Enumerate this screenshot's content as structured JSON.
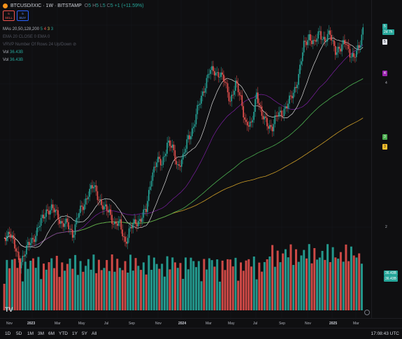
{
  "header": {
    "symbol": "BTCUSD/IXIC · 1W · BITSTAMP",
    "o_label": "O",
    "o_val": "5",
    "h_label": "H",
    "h_val": "5",
    "l_label": "L",
    "l_val": "5",
    "c_label": "C",
    "c_val": "5",
    "change": "+1 (+11.59%)"
  },
  "trade": {
    "sell_price": "5",
    "sell_label": "SELL",
    "buy_price": "5",
    "buy_label": "BUY"
  },
  "legend": {
    "mas_label": "MAs 20,50,128,200",
    "mas_values": [
      "5",
      "4",
      "3",
      "3"
    ],
    "ema_label": "EMA 20 CLOSE 0 EMA 0",
    "vrvp_label": "VRVP Number Of Rows 24 Up/Down",
    "vol1_label": "Vol",
    "vol1_value": "36.43B",
    "vol2_label": "Vol",
    "vol2_value": "36.43B"
  },
  "colors": {
    "up": "#26a69a",
    "down": "#ef5350",
    "ma20": "#d9d9d9",
    "ma50": "#7b1fa2",
    "ma128": "#4caf50",
    "ma200": "#fbc02d"
  },
  "price_scale": {
    "tags": [
      {
        "text": "5",
        "color": "#26a69a"
      },
      {
        "text": "2d 7h",
        "color": "#26a69a"
      },
      {
        "text": "5",
        "color": "#e0e3eb"
      },
      {
        "text": "4",
        "color": "#9c27b0"
      },
      {
        "text": "3",
        "color": "#4caf50"
      },
      {
        "text": "3",
        "color": "#fbc02d"
      }
    ],
    "labels": [
      "4",
      "2"
    ],
    "vol_tags": [
      "36.43B",
      "36.43B"
    ]
  },
  "time_axis": [
    "Nov",
    "2023",
    "Mar",
    "May",
    "Jul",
    "Sep",
    "Nov",
    "2024",
    "Mar",
    "May",
    "Jul",
    "Sep",
    "Nov",
    "2025",
    "Mar"
  ],
  "ranges": [
    "1D",
    "5D",
    "1M",
    "3M",
    "6M",
    "YTD",
    "1Y",
    "5Y",
    "All"
  ],
  "clock": "17:08:43 UTC",
  "logo": "TV"
}
